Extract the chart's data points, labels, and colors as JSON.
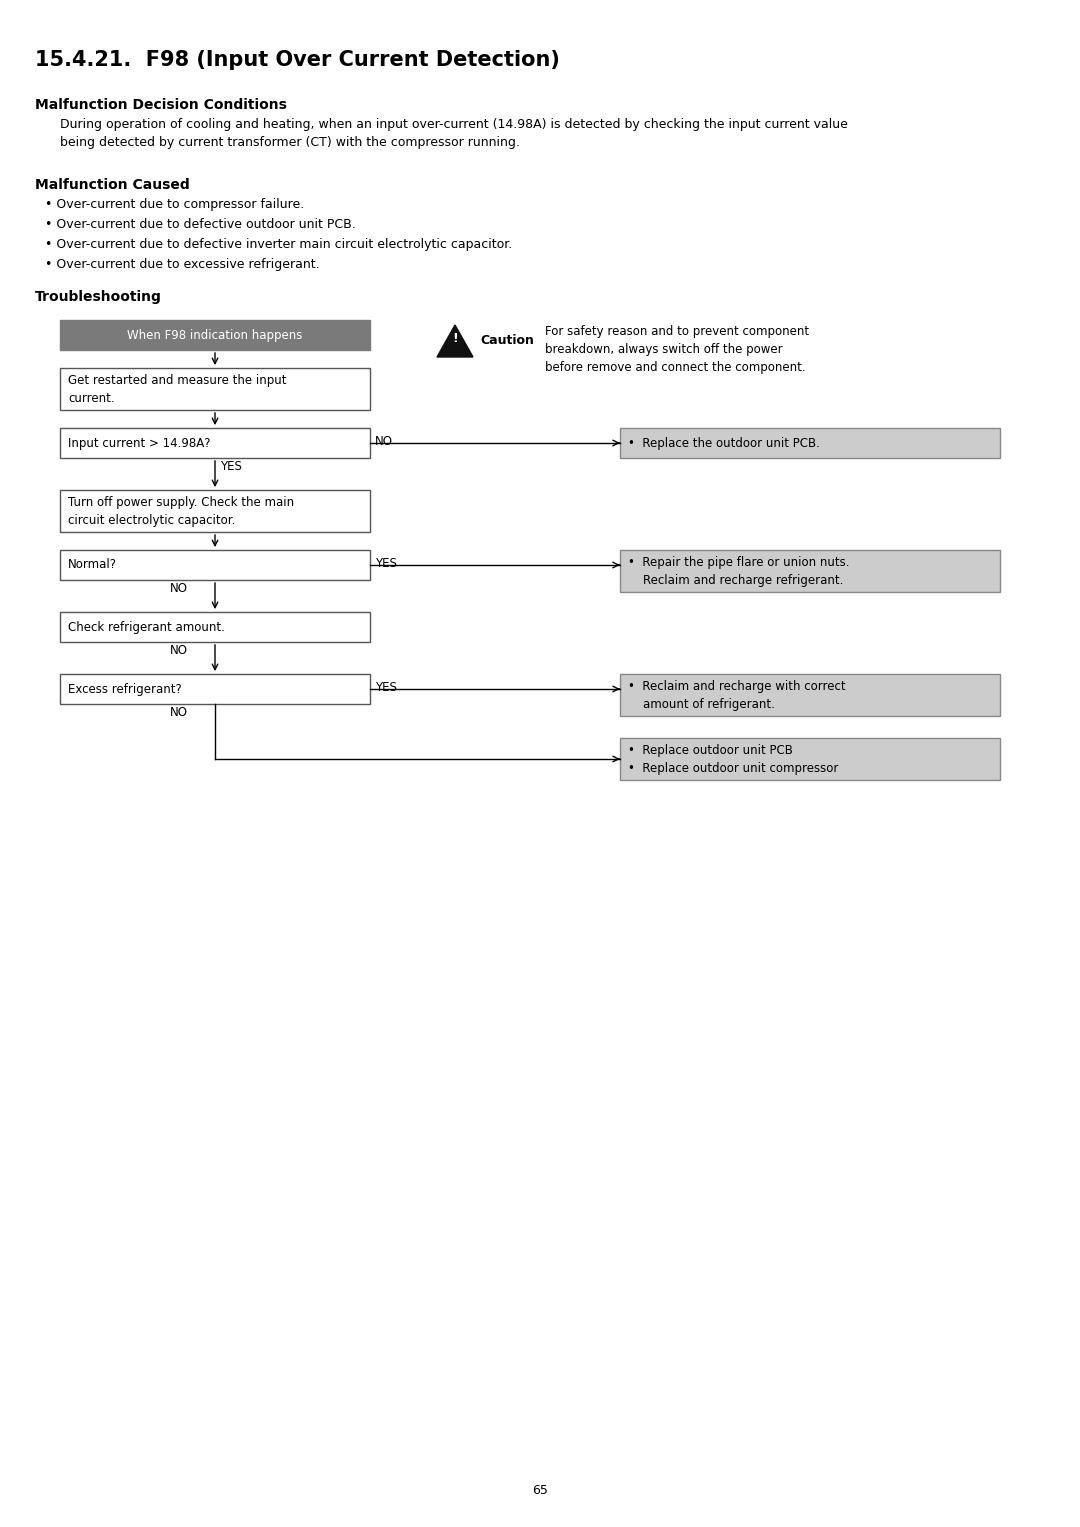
{
  "title": "15.4.21.  F98 (Input Over Current Detection)",
  "section1_header": "Malfunction Decision Conditions",
  "section1_text_line1": "During operation of cooling and heating, when an input over-current (14.98A) is detected by checking the input current value",
  "section1_text_line2": "being detected by current transformer (CT) with the compressor running.",
  "section2_header": "Malfunction Caused",
  "section2_bullets": [
    "Over-current due to compressor failure.",
    "Over-current due to defective outdoor unit PCB.",
    "Over-current due to defective inverter main circuit electrolytic capacitor.",
    "Over-current due to excessive refrigerant."
  ],
  "section3_header": "Troubleshooting",
  "caution_text": "For safety reason and to prevent component\nbreakdown, always switch off the power\nbefore remove and connect the component.",
  "caution_label": "Caution",
  "start_box_text": "When F98 indication happens",
  "start_box_color": "#7a7a7a",
  "start_box_text_color": "#ffffff",
  "box_border_color": "#555555",
  "right_box_color": "#cccccc",
  "right_box_border": "#888888",
  "flow_boxes": [
    "Get restarted and measure the input\ncurrent.",
    "Input current > 14.98A?",
    "Turn off power supply. Check the main\ncircuit electrolytic capacitor.",
    "Normal?",
    "Check refrigerant amount.",
    "Excess refrigerant?"
  ],
  "right_boxes": [
    "•  Replace the outdoor unit PCB.",
    "•  Repair the pipe flare or union nuts.\n    Reclaim and recharge refrigerant.",
    "•  Reclaim and recharge with correct\n    amount of refrigerant.",
    "•  Replace outdoor unit PCB\n•  Replace outdoor unit compressor"
  ],
  "right_labels": [
    "NO",
    "YES",
    "YES",
    "NO"
  ],
  "yes_label_box1": "YES",
  "no_label_box3": "NO",
  "no_label_box4": "NO",
  "no_label_box5": "NO",
  "page_number": "65",
  "background_color": "#ffffff"
}
